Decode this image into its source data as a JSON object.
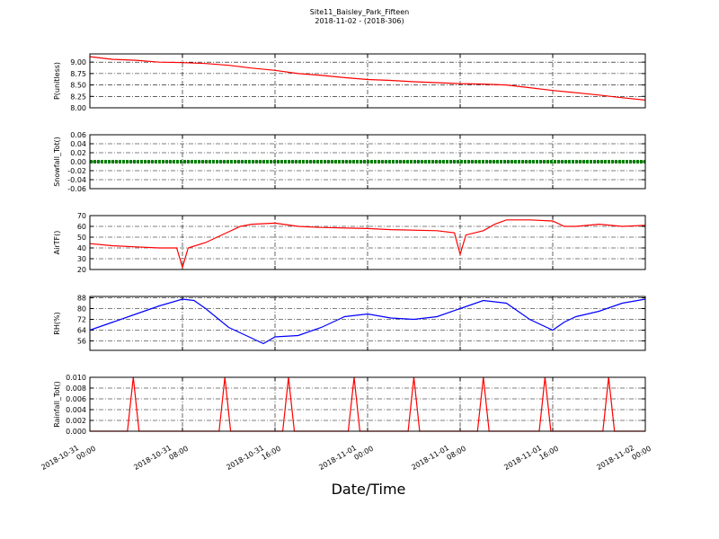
{
  "chart_data": [
    {
      "type": "line",
      "title": "Site11_Baisley_Park_Fifteen",
      "subtitle": "2018-11-02 - (2018-306)",
      "ylabel": "P(unitless)",
      "x": [
        "2018-10-31 00:00",
        "2018-10-31 02:00",
        "2018-10-31 04:00",
        "2018-10-31 06:00",
        "2018-10-31 08:00",
        "2018-10-31 10:00",
        "2018-10-31 12:00",
        "2018-10-31 14:00",
        "2018-10-31 16:00",
        "2018-10-31 18:00",
        "2018-10-31 20:00",
        "2018-10-31 22:00",
        "2018-11-01 00:00",
        "2018-11-01 02:00",
        "2018-11-01 04:00",
        "2018-11-01 06:00",
        "2018-11-01 08:00",
        "2018-11-01 10:00",
        "2018-11-01 12:00",
        "2018-11-01 14:00",
        "2018-11-01 16:00",
        "2018-11-01 18:00",
        "2018-11-01 20:00",
        "2018-11-01 22:00",
        "2018-11-02 00:00"
      ],
      "series": [
        {
          "color": "#ff0000",
          "values": [
            9.12,
            9.06,
            9.04,
            9.0,
            8.99,
            8.97,
            8.93,
            8.87,
            8.82,
            8.75,
            8.71,
            8.66,
            8.62,
            8.6,
            8.57,
            8.55,
            8.53,
            8.52,
            8.5,
            8.44,
            8.38,
            8.33,
            8.28,
            8.22,
            8.17
          ]
        }
      ],
      "xlim": [
        "2018-10-31 00:00",
        "2018-11-02 00:00"
      ],
      "ylim": [
        8.0,
        9.18
      ],
      "yticks": [
        {
          "value": 8,
          "label": "8.00"
        },
        8.25,
        {
          "value": 8.5,
          "label": "8.50"
        },
        8.75,
        {
          "value": 9,
          "label": "9.00"
        }
      ],
      "grid": true
    },
    {
      "type": "line",
      "ylabel": "Snowfall_Tot()",
      "x": [
        "2018-10-31 00:00",
        "2018-10-31 02:00",
        "2018-10-31 04:00",
        "2018-10-31 06:00",
        "2018-10-31 08:00",
        "2018-10-31 10:00",
        "2018-10-31 12:00",
        "2018-10-31 14:00",
        "2018-10-31 16:00",
        "2018-10-31 18:00",
        "2018-10-31 20:00",
        "2018-10-31 22:00",
        "2018-11-01 00:00",
        "2018-11-01 02:00",
        "2018-11-01 04:00",
        "2018-11-01 06:00",
        "2018-11-01 08:00",
        "2018-11-01 10:00",
        "2018-11-01 12:00",
        "2018-11-01 14:00",
        "2018-11-01 16:00",
        "2018-11-01 18:00",
        "2018-11-01 20:00",
        "2018-11-01 22:00",
        "2018-11-02 00:00"
      ],
      "series": [
        {
          "color": "#008000",
          "values": [
            0,
            0,
            0,
            0,
            0,
            0,
            0,
            0,
            0,
            0,
            0,
            0,
            0,
            0,
            0,
            0,
            0,
            0,
            0,
            0,
            0,
            0,
            0,
            0,
            0
          ]
        }
      ],
      "xlim": [
        "2018-10-31 00:00",
        "2018-11-02 00:00"
      ],
      "ylim": [
        -0.06,
        0.06
      ],
      "yticks": [
        -0.06,
        -0.04,
        -0.02,
        {
          "value": 0,
          "label": "0.00"
        },
        0.02,
        0.04,
        0.06
      ],
      "grid": true
    },
    {
      "type": "line",
      "ylabel": "AirTF()",
      "x": [
        "2018-10-31 00:00",
        "2018-10-31 02:00",
        "2018-10-31 04:00",
        "2018-10-31 06:00",
        "2018-10-31 07:30",
        "2018-10-31 08:00",
        "2018-10-31 08:30",
        "2018-10-31 10:00",
        "2018-10-31 12:00",
        "2018-10-31 13:00",
        "2018-10-31 14:00",
        "2018-10-31 16:00",
        "2018-10-31 18:00",
        "2018-10-31 20:00",
        "2018-11-01 00:00",
        "2018-11-01 02:00",
        "2018-11-01 06:00",
        "2018-11-01 07:30",
        "2018-11-01 08:00",
        "2018-11-01 08:30",
        "2018-11-01 10:00",
        "2018-11-01 11:00",
        "2018-11-01 12:00",
        "2018-11-01 14:00",
        "2018-11-01 16:00",
        "2018-11-01 17:00",
        "2018-11-01 18:00",
        "2018-11-01 20:00",
        "2018-11-01 22:00",
        "2018-11-02 00:00"
      ],
      "series": [
        {
          "color": "#ff0000",
          "values": [
            44,
            42,
            41,
            40,
            40,
            22,
            40,
            45,
            55,
            60,
            62,
            63,
            60,
            59,
            58,
            57,
            56,
            54,
            34,
            52,
            56,
            62,
            66,
            66,
            65,
            60,
            60,
            62,
            60,
            61
          ]
        }
      ],
      "xlim": [
        "2018-10-31 00:00",
        "2018-11-02 00:00"
      ],
      "ylim": [
        20,
        70
      ],
      "yticks": [
        20,
        30,
        40,
        50,
        60,
        70
      ],
      "grid": true
    },
    {
      "type": "line",
      "ylabel": "RH(%)",
      "x": [
        "2018-10-31 00:00",
        "2018-10-31 02:00",
        "2018-10-31 04:00",
        "2018-10-31 06:00",
        "2018-10-31 08:00",
        "2018-10-31 09:00",
        "2018-10-31 10:00",
        "2018-10-31 12:00",
        "2018-10-31 14:00",
        "2018-10-31 15:00",
        "2018-10-31 16:00",
        "2018-10-31 18:00",
        "2018-10-31 20:00",
        "2018-10-31 22:00",
        "2018-11-01 00:00",
        "2018-11-01 02:00",
        "2018-11-01 04:00",
        "2018-11-01 06:00",
        "2018-11-01 08:00",
        "2018-11-01 10:00",
        "2018-11-01 12:00",
        "2018-11-01 14:00",
        "2018-11-01 16:00",
        "2018-11-01 17:00",
        "2018-11-01 18:00",
        "2018-11-01 20:00",
        "2018-11-01 22:00",
        "2018-11-02 00:00"
      ],
      "series": [
        {
          "color": "#0000ff",
          "values": [
            64,
            70,
            76,
            82,
            87,
            86,
            80,
            66,
            58,
            54,
            59,
            60,
            66,
            74,
            76,
            73,
            72,
            74,
            80,
            86,
            84,
            72,
            64,
            70,
            74,
            78,
            84,
            87
          ]
        }
      ],
      "xlim": [
        "2018-10-31 00:00",
        "2018-11-02 00:00"
      ],
      "ylim": [
        49,
        89
      ],
      "yticks": [
        56,
        64,
        72,
        80,
        88
      ],
      "grid": true
    },
    {
      "type": "line",
      "ylabel": "Rainfall_Tot()",
      "xlabel": "Date/Time",
      "x": [
        "2018-10-31 00:00",
        "2018-10-31 03:15",
        "2018-10-31 03:45",
        "2018-10-31 04:15",
        "2018-10-31 11:10",
        "2018-10-31 11:40",
        "2018-10-31 12:10",
        "2018-10-31 16:40",
        "2018-10-31 17:10",
        "2018-10-31 17:40",
        "2018-10-31 22:20",
        "2018-10-31 22:50",
        "2018-10-31 23:20",
        "2018-11-01 03:30",
        "2018-11-01 04:00",
        "2018-11-01 04:30",
        "2018-11-01 09:30",
        "2018-11-01 10:00",
        "2018-11-01 10:30",
        "2018-11-01 14:50",
        "2018-11-01 15:20",
        "2018-11-01 15:50",
        "2018-11-01 20:20",
        "2018-11-01 20:50",
        "2018-11-01 21:20",
        "2018-11-02 00:00"
      ],
      "series": [
        {
          "color": "#ff0000",
          "values": [
            0,
            0,
            0.01,
            0,
            0,
            0.01,
            0,
            0,
            0.01,
            0,
            0,
            0.01,
            0,
            0,
            0.01,
            0,
            0,
            0.01,
            0,
            0,
            0.01,
            0,
            0,
            0.01,
            0,
            0
          ]
        }
      ],
      "xlim": [
        "2018-10-31 00:00",
        "2018-11-02 00:00"
      ],
      "ylim": [
        0,
        0.01
      ],
      "xticks": [
        "2018-10-31 00:00",
        "2018-10-31 08:00",
        "2018-10-31 16:00",
        "2018-11-01 00:00",
        "2018-11-01 08:00",
        "2018-11-01 16:00",
        "2018-11-02 00:00"
      ],
      "yticks": [
        {
          "value": 0,
          "label": "0.000"
        },
        0.002,
        0.004,
        0.006,
        0.008,
        {
          "value": 0.01,
          "label": "0.010"
        }
      ],
      "grid": true
    }
  ]
}
